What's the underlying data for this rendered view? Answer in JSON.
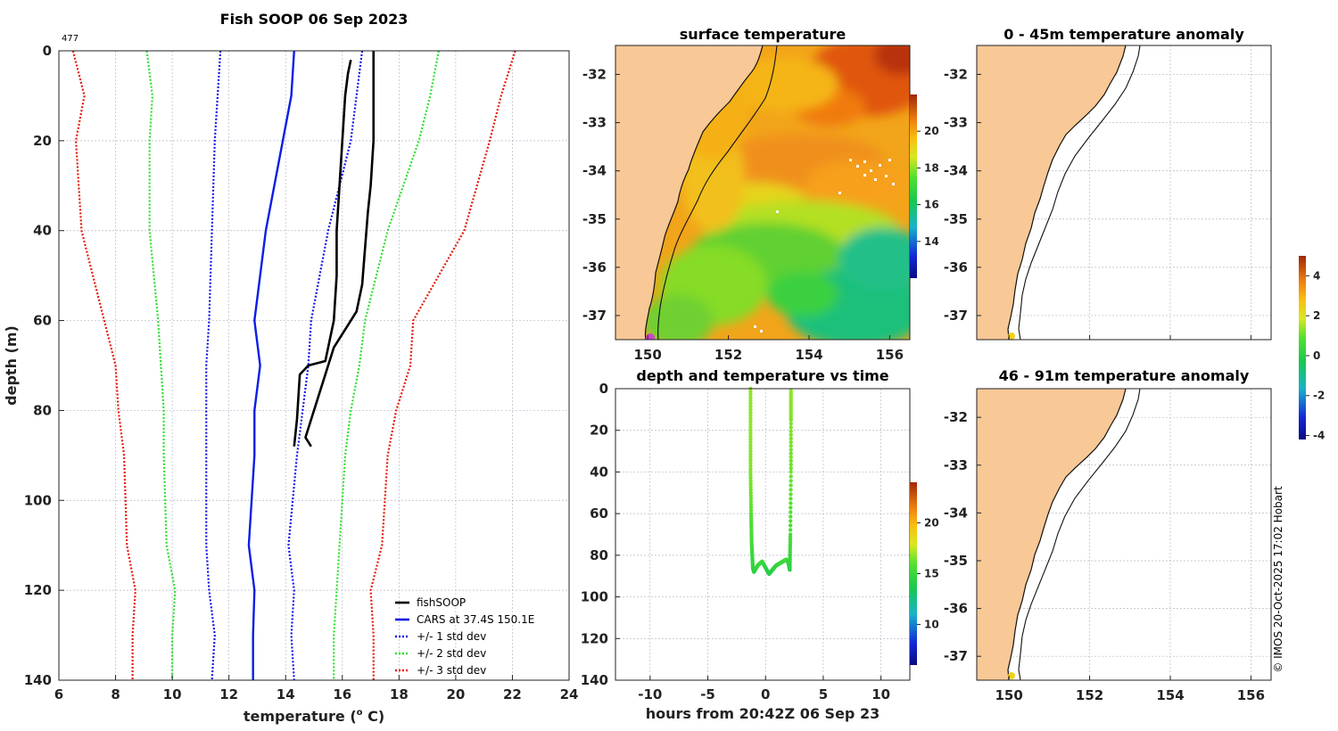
{
  "fig_title": "Fish SOOP 06 Sep 2023",
  "profile_count": "477",
  "credit": "© IMOS 20-Oct-2025 17:02 Hobart",
  "colors": {
    "fish": "#000000",
    "cars": "#0a1ee6",
    "std1": "#1414e6",
    "std2": "#2ee02e",
    "std3": "#e61a0a",
    "land": "#f8c896",
    "track": "#d040d0",
    "tag": "#f0d020"
  },
  "chart_data": [
    {
      "id": "profile",
      "type": "line",
      "xlabel": "temperature (o C)",
      "ylabel": "depth (m)",
      "xlim": [
        6,
        24
      ],
      "ylim": [
        0,
        140
      ],
      "y_reversed": true,
      "xticks": [
        6,
        8,
        10,
        12,
        14,
        16,
        18,
        20,
        22,
        24
      ],
      "yticks": [
        0,
        20,
        40,
        60,
        80,
        100,
        120,
        140
      ],
      "legend_position": "bottom-right",
      "series": [
        {
          "key": "fish_down",
          "name": "fishSOOP",
          "style": "solid-thick",
          "color": "#000000",
          "x": [
            17.1,
            17.1,
            17.1,
            17.0,
            16.9,
            16.8,
            16.7,
            16.5,
            16.1,
            15.7,
            15.4,
            15.1,
            14.9,
            14.8,
            14.7,
            14.9
          ],
          "y": [
            0,
            10,
            20,
            30,
            36,
            44,
            52,
            58,
            62,
            66,
            72,
            78,
            82,
            84,
            86,
            88
          ]
        },
        {
          "key": "fish_up",
          "name": "",
          "style": "solid-thick",
          "color": "#000000",
          "x": [
            14.3,
            14.4,
            14.5,
            14.8,
            15.4,
            15.7,
            15.8,
            15.8,
            15.9,
            16.0,
            16.1,
            16.2,
            16.3
          ],
          "y": [
            88,
            82,
            72,
            70,
            69,
            60,
            50,
            40,
            30,
            20,
            10,
            5,
            2
          ]
        },
        {
          "key": "cars",
          "name": "CARS at 37.4S 150.1E",
          "style": "solid",
          "color": "#0a1ee6",
          "x": [
            14.3,
            14.2,
            13.9,
            13.3,
            12.9,
            13.1,
            12.9,
            12.9,
            12.7,
            12.9,
            12.85,
            12.85
          ],
          "y": [
            0,
            10,
            20,
            40,
            60,
            70,
            80,
            90,
            110,
            120,
            130,
            140
          ]
        },
        {
          "key": "s1_lo",
          "name": "+/- 1 std dev",
          "style": "dotted",
          "color": "#1414e6",
          "x": [
            11.7,
            11.6,
            11.5,
            11.4,
            11.3,
            11.2,
            11.2,
            11.2,
            11.2,
            11.3,
            11.5,
            11.4
          ],
          "y": [
            0,
            10,
            20,
            40,
            60,
            70,
            80,
            90,
            110,
            120,
            130,
            140
          ]
        },
        {
          "key": "s1_hi",
          "name": "",
          "style": "dotted",
          "color": "#1414e6",
          "x": [
            16.7,
            16.5,
            16.3,
            15.5,
            14.9,
            14.8,
            14.6,
            14.4,
            14.1,
            14.3,
            14.2,
            14.3
          ],
          "y": [
            0,
            10,
            20,
            40,
            60,
            70,
            80,
            90,
            110,
            120,
            130,
            140
          ]
        },
        {
          "key": "s2_lo",
          "name": "+/- 2 std dev",
          "style": "dotted",
          "color": "#2ee02e",
          "x": [
            9.1,
            9.3,
            9.2,
            9.2,
            9.5,
            9.6,
            9.7,
            9.7,
            9.8,
            10.1,
            10.0,
            10.0
          ],
          "y": [
            0,
            10,
            20,
            40,
            60,
            70,
            80,
            90,
            110,
            120,
            130,
            140
          ]
        },
        {
          "key": "s2_hi",
          "name": "",
          "style": "dotted",
          "color": "#2ee02e",
          "x": [
            19.4,
            19.1,
            18.7,
            17.6,
            16.8,
            16.6,
            16.3,
            16.1,
            15.9,
            15.8,
            15.7,
            15.7
          ],
          "y": [
            0,
            10,
            20,
            40,
            60,
            70,
            80,
            90,
            110,
            120,
            130,
            140
          ]
        },
        {
          "key": "s3_lo",
          "name": "+/- 3 std dev",
          "style": "dotted",
          "color": "#e61a0a",
          "x": [
            6.5,
            6.9,
            6.6,
            6.8,
            7.6,
            8.0,
            8.1,
            8.3,
            8.4,
            8.7,
            8.6,
            8.6
          ],
          "y": [
            0,
            10,
            20,
            40,
            60,
            70,
            80,
            90,
            110,
            120,
            130,
            140
          ]
        },
        {
          "key": "s3_hi",
          "name": "",
          "style": "dotted",
          "color": "#e61a0a",
          "x": [
            22.1,
            21.6,
            21.2,
            20.3,
            18.5,
            18.4,
            17.9,
            17.6,
            17.4,
            17.0,
            17.1,
            17.1
          ],
          "y": [
            0,
            10,
            20,
            40,
            60,
            70,
            80,
            90,
            110,
            120,
            130,
            140
          ]
        }
      ]
    },
    {
      "id": "sst",
      "type": "heatmap",
      "title": "surface temperature",
      "xlim": [
        149.2,
        156.5
      ],
      "ylim": [
        -37.5,
        -31.4
      ],
      "xticks": [
        150,
        152,
        154,
        156
      ],
      "yticks": [
        -32,
        -33,
        -34,
        -35,
        -36,
        -37
      ],
      "colorbar": {
        "min": 12,
        "max": 22,
        "ticks": [
          14,
          16,
          18,
          20
        ]
      }
    },
    {
      "id": "timeseries",
      "type": "scatter",
      "title": "depth and temperature vs time",
      "xlabel": "hours from 20:42Z 06 Sep 23",
      "xlim": [
        -13,
        12.5
      ],
      "ylim": [
        0,
        140
      ],
      "y_reversed": true,
      "xticks": [
        -10,
        -5,
        0,
        5,
        10
      ],
      "yticks": [
        0,
        20,
        40,
        60,
        80,
        100,
        120,
        140
      ],
      "colorbar": {
        "min": 6,
        "max": 24,
        "ticks": [
          10,
          15,
          20
        ]
      },
      "x": [
        -1.3,
        -1.3,
        -1.3,
        -1.25,
        -1.2,
        -1.1,
        -1.0,
        -0.7,
        -0.3,
        0.0,
        0.3,
        0.6,
        0.9,
        1.2,
        1.5,
        1.8,
        2.0,
        2.1,
        2.15,
        2.2,
        2.2,
        2.2
      ],
      "y": [
        0,
        20,
        40,
        60,
        75,
        86,
        88,
        85,
        83,
        86,
        89,
        87,
        85,
        84,
        83,
        82,
        84,
        87,
        70,
        40,
        15,
        1
      ],
      "t": [
        16.8,
        16.8,
        16.6,
        16.0,
        15.4,
        14.7,
        14.4,
        14.8,
        15.2,
        14.5,
        14.0,
        14.3,
        14.6,
        14.9,
        15.0,
        15.3,
        14.8,
        14.3,
        15.6,
        16.3,
        16.6,
        16.8
      ]
    },
    {
      "id": "anom_shallow",
      "type": "heatmap",
      "title": "0 - 45m temperature anomaly",
      "xlim": [
        149.2,
        156.5
      ],
      "ylim": [
        -37.5,
        -31.4
      ],
      "xticks": [
        150,
        152,
        154,
        156
      ],
      "yticks": [
        -32,
        -33,
        -34,
        -35,
        -36,
        -37
      ],
      "colorbar": {
        "min": -4.2,
        "max": 5.0,
        "ticks": [
          -4,
          -2,
          0,
          2,
          4
        ]
      }
    },
    {
      "id": "anom_deep",
      "type": "heatmap",
      "title": "46 - 91m temperature anomaly",
      "xlim": [
        149.2,
        156.5
      ],
      "ylim": [
        -37.5,
        -31.4
      ],
      "xticks": [
        150,
        152,
        154,
        156
      ],
      "yticks": [
        -32,
        -33,
        -34,
        -35,
        -36,
        -37
      ]
    }
  ]
}
